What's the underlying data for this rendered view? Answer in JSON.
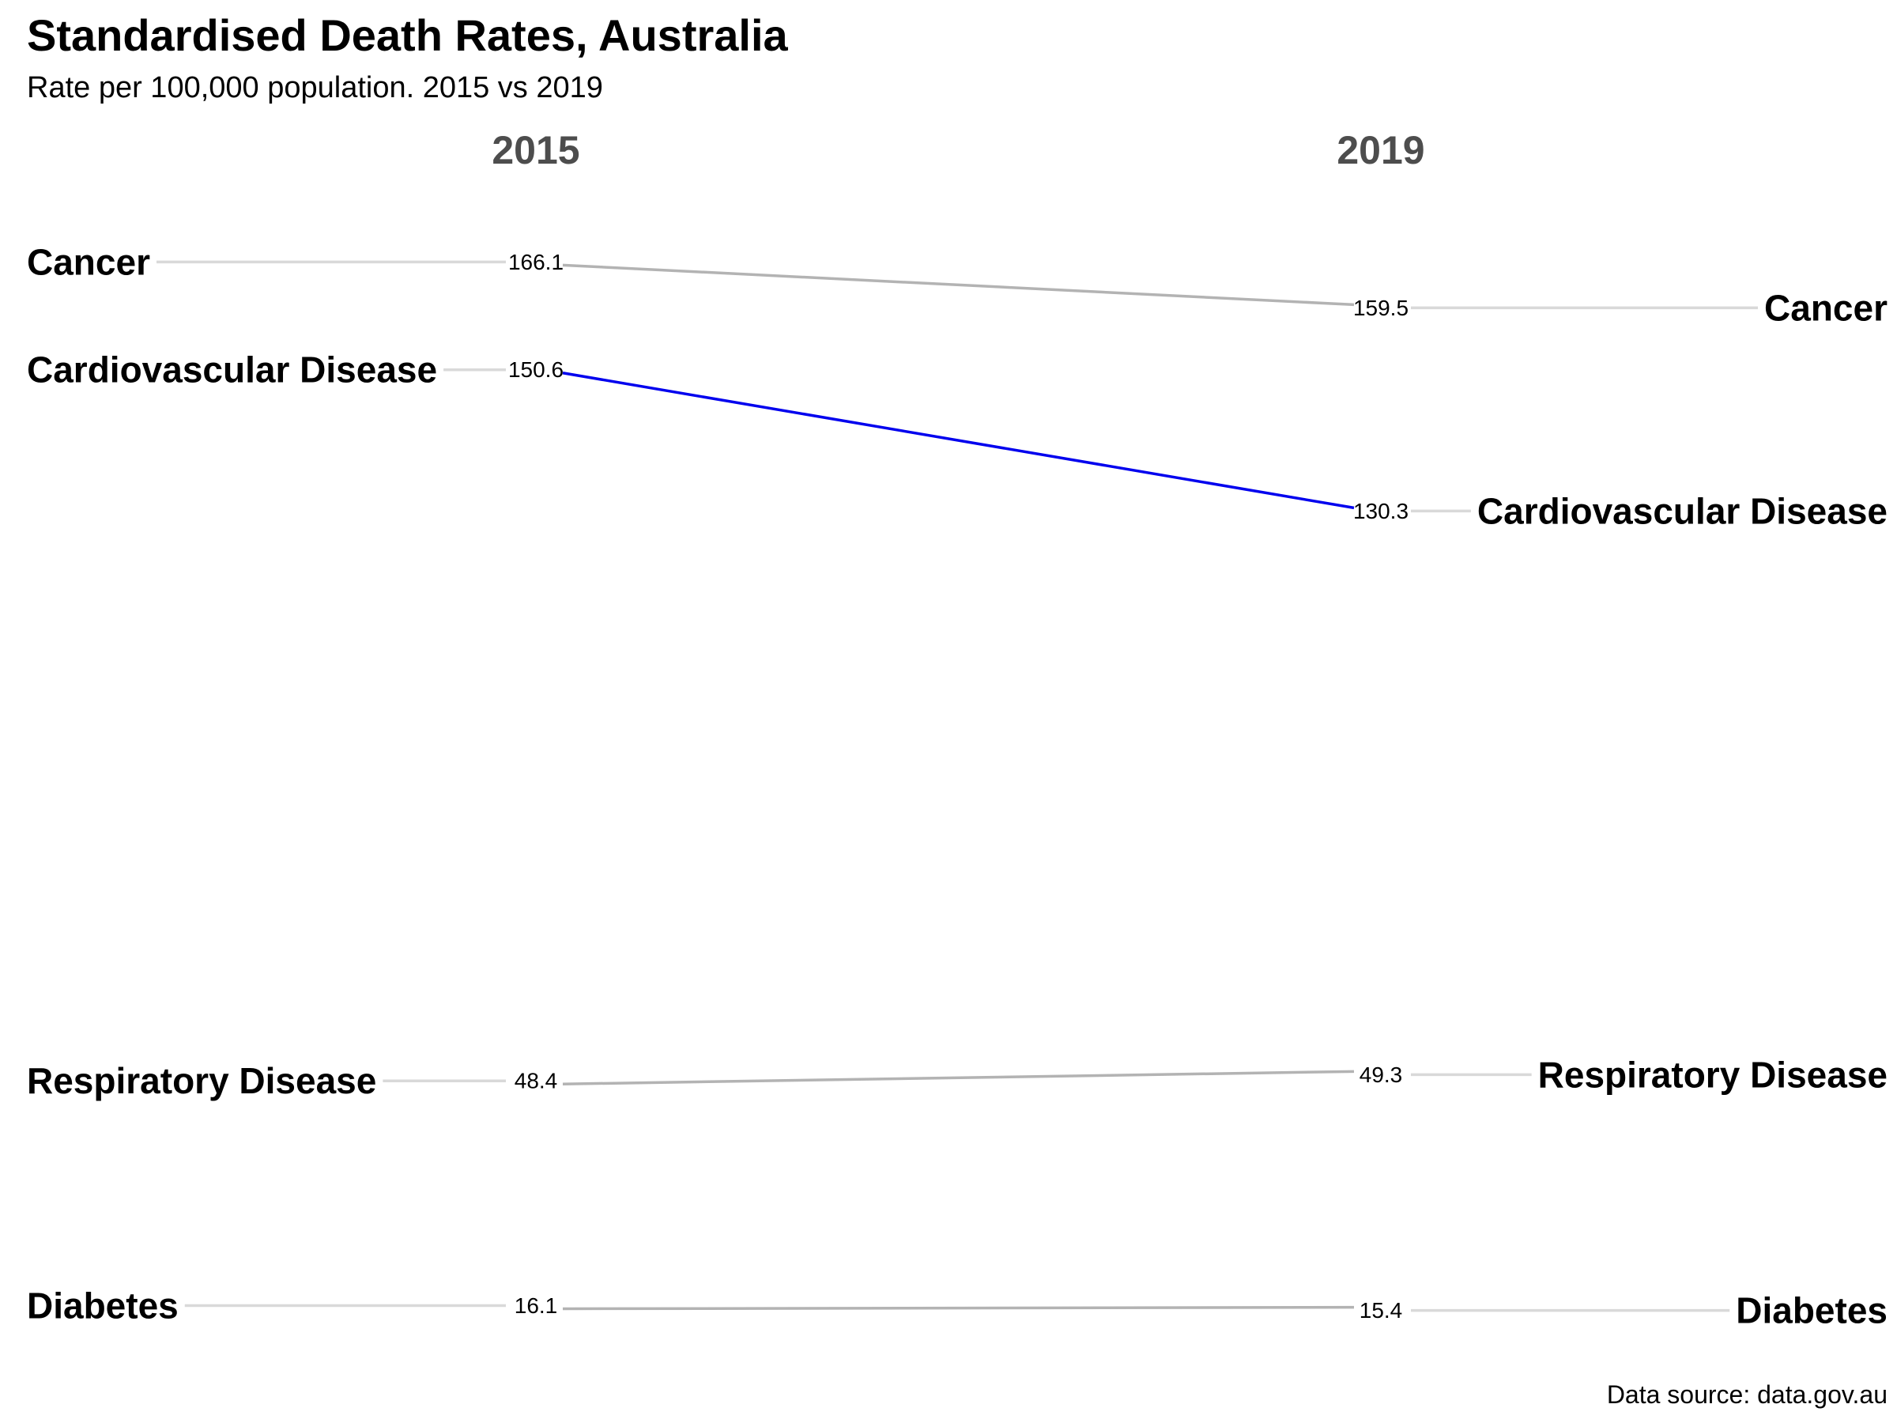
{
  "chart_data": {
    "type": "line",
    "title": "Standardised Death Rates, Australia",
    "subtitle": "Rate per 100,000 population. 2015 vs 2019",
    "caption": "Data source: data.gov.au",
    "x": [
      "2015",
      "2019"
    ],
    "series": [
      {
        "name": "Cancer",
        "values": [
          166.1,
          159.5
        ],
        "labels": [
          "166.1",
          "159.5"
        ],
        "color": "#b3b3b3"
      },
      {
        "name": "Cardiovascular Disease",
        "values": [
          150.6,
          130.3
        ],
        "labels": [
          "150.6",
          "130.3"
        ],
        "color": "#0000ee"
      },
      {
        "name": "Respiratory Disease",
        "values": [
          48.4,
          49.3
        ],
        "labels": [
          "48.4",
          "49.3"
        ],
        "color": "#b3b3b3"
      },
      {
        "name": "Diabetes",
        "values": [
          16.1,
          15.4
        ],
        "labels": [
          "16.1",
          "15.4"
        ],
        "color": "#b3b3b3"
      }
    ],
    "leader_color": "#d9d9d9",
    "grid": false,
    "legend": "none"
  }
}
